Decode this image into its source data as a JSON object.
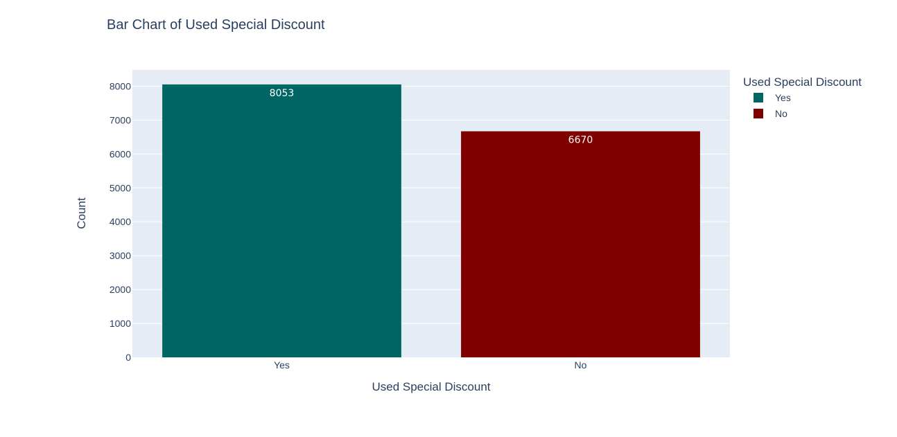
{
  "chart_data": {
    "type": "bar",
    "title": "Bar Chart of Used Special Discount",
    "xlabel": "Used Special Discount",
    "ylabel": "Count",
    "categories": [
      "Yes",
      "No"
    ],
    "values": [
      8053,
      6670
    ],
    "colors": [
      "#006663",
      "#800000"
    ],
    "ylim": [
      0,
      8480
    ],
    "yticks": [
      0,
      1000,
      2000,
      3000,
      4000,
      5000,
      6000,
      7000,
      8000
    ],
    "grid": true,
    "plot_background": "#e5ecf6",
    "legend": {
      "title": "Used Special Discount",
      "placement": "top-right",
      "entries": [
        "Yes",
        "No"
      ]
    }
  }
}
